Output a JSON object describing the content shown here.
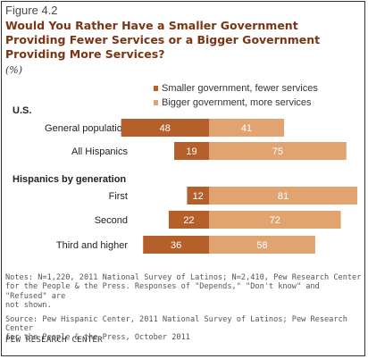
{
  "figure_label": "Figure 4.2",
  "title_lines": [
    "Would You Rather Have a Smaller Government",
    "Providing Fewer Services or a Bigger Government",
    "Providing More Services?"
  ],
  "unit": "(%)",
  "colors": {
    "smaller": "#b5602a",
    "bigger": "#e1a470",
    "title": "#7a3514"
  },
  "chart_data": {
    "type": "bar",
    "orientation": "horizontal-diverging",
    "series": [
      {
        "name": "Smaller government, fewer services",
        "color": "#b5602a",
        "direction": "left"
      },
      {
        "name": "Bigger government, more services",
        "color": "#e1a470",
        "direction": "right"
      }
    ],
    "groups": [
      {
        "label": "U.S.",
        "rows": [
          {
            "label": "General population",
            "values": [
              48,
              41
            ]
          },
          {
            "label": "All Hispanics",
            "values": [
              19,
              75
            ]
          }
        ]
      },
      {
        "label": "Hispanics by generation",
        "rows": [
          {
            "label": "First",
            "values": [
              12,
              81
            ]
          },
          {
            "label": "Second",
            "values": [
              22,
              72
            ]
          },
          {
            "label": "Third and higher",
            "values": [
              36,
              58
            ]
          }
        ]
      }
    ]
  },
  "notes": [
    "Notes: N=1,220, 2011 National Survey of Latinos; N=2,410, Pew Research Center",
    "for the People & the Press. Responses of \"Depends,\" \"Don't know\" and \"Refused\" are",
    "not shown."
  ],
  "source": [
    "Source: Pew Hispanic Center, 2011 National Survey of Latinos; Pew Research Center",
    "for the People & the Press, October 2011"
  ],
  "brand": "PEW RESEARCH CENTER"
}
